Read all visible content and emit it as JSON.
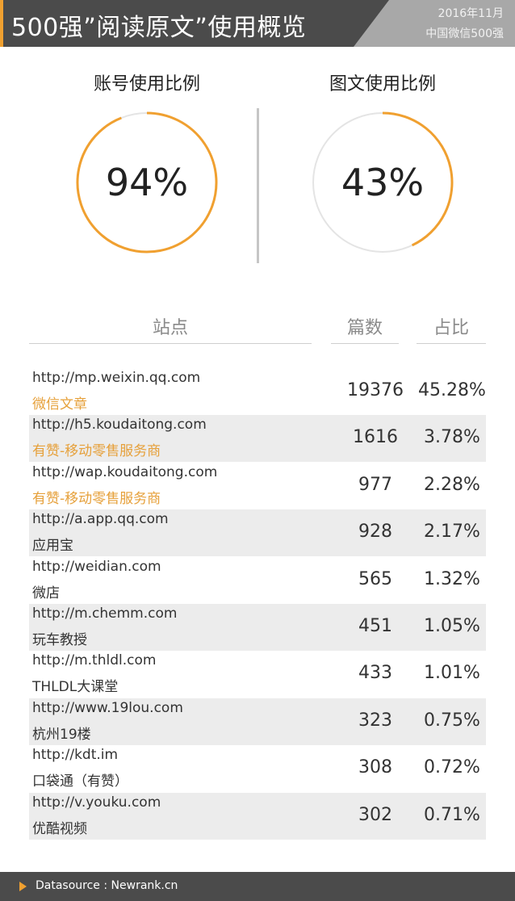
{
  "header": {
    "title": "500强”阅读原文”使用概览",
    "date": "2016年11月",
    "subtitle": "中国微信500强",
    "accent_color": "#f0a030",
    "bg_color": "#4b4b4b"
  },
  "rings": [
    {
      "title": "账号使用比例",
      "value": 94,
      "label": "94%"
    },
    {
      "title": "图文使用比例",
      "value": 43,
      "label": "43%"
    }
  ],
  "ring_colors": {
    "arc": "#f0a030",
    "track": "#e4e4e4"
  },
  "chart_data": {
    "type": "table",
    "columns": [
      "站点",
      "篇数",
      "占比"
    ],
    "rows": [
      {
        "url": "http://mp.weixin.qq.com",
        "name": "微信文章",
        "name_highlight": true,
        "count": "19376",
        "pct": "45.28%"
      },
      {
        "url": "http://h5.koudaitong.com",
        "name": "有赞-移动零售服务商",
        "name_highlight": true,
        "count": "1616",
        "pct": "3.78%"
      },
      {
        "url": "http://wap.koudaitong.com",
        "name": "有赞-移动零售服务商",
        "name_highlight": true,
        "count": "977",
        "pct": "2.28%"
      },
      {
        "url": "http://a.app.qq.com",
        "name": "应用宝",
        "name_highlight": false,
        "count": "928",
        "pct": "2.17%"
      },
      {
        "url": "http://weidian.com",
        "name": "微店",
        "name_highlight": false,
        "count": "565",
        "pct": "1.32%"
      },
      {
        "url": "http://m.chemm.com",
        "name": "玩车教授",
        "name_highlight": false,
        "count": "451",
        "pct": "1.05%"
      },
      {
        "url": "http://m.thldl.com",
        "name": "THLDL大课堂",
        "name_highlight": false,
        "count": "433",
        "pct": "1.01%"
      },
      {
        "url": "http://www.19lou.com",
        "name": "杭州19楼",
        "name_highlight": false,
        "count": "323",
        "pct": "0.75%"
      },
      {
        "url": "http://kdt.im",
        "name": "口袋通（有赞）",
        "name_highlight": false,
        "count": "308",
        "pct": "0.72%"
      },
      {
        "url": "http://v.youku.com",
        "name": "优酷视频",
        "name_highlight": false,
        "count": "302",
        "pct": "0.71%"
      }
    ]
  },
  "footer": {
    "source": "Datasource : Newrank.cn",
    "icon": "play-triangle-icon"
  }
}
